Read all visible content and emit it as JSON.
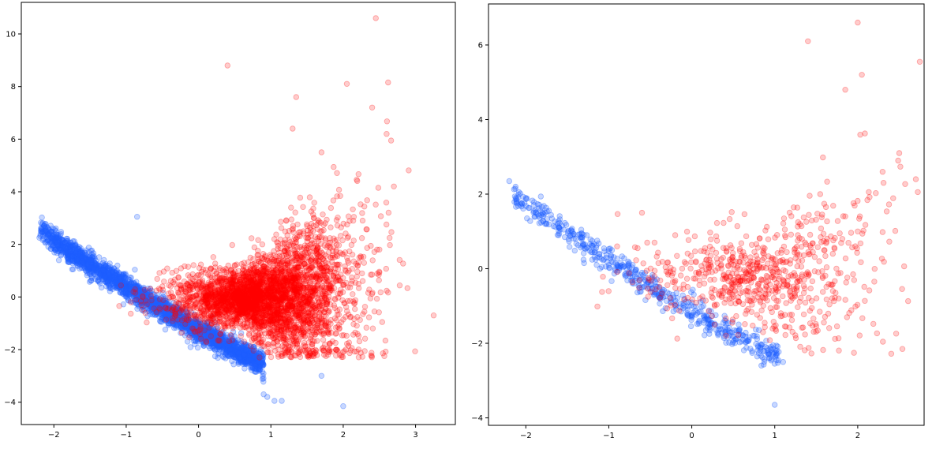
{
  "colors": {
    "background": "#ffffff",
    "axes": "#000000",
    "class_a": "#ff0000",
    "class_b": "#1f5fff"
  },
  "chart_data": [
    {
      "type": "scatter",
      "title": "",
      "xlabel": "",
      "ylabel": "",
      "xlim": [
        -2.45,
        3.55
      ],
      "ylim": [
        -4.85,
        11.2
      ],
      "xticks": [
        -2,
        -1,
        0,
        1,
        2,
        3
      ],
      "yticks": [
        -4,
        -2,
        0,
        2,
        4,
        6,
        8,
        10
      ],
      "xtick_labels": [
        "−2",
        "−1",
        "0",
        "1",
        "2",
        "3"
      ],
      "ytick_labels": [
        "−4",
        "−2",
        "0",
        "2",
        "4",
        "6",
        "8",
        "10"
      ],
      "grid": false,
      "legend": "none",
      "series": [
        {
          "color": "#1f5fff",
          "alpha": 0.25,
          "approx_points": 3200,
          "distribution": "narrow diagonal band along y ≈ -1.6·x - 1.4 for x in [-2.2, 0.9], plus sparse outliers",
          "x": [
            -2.2,
            -2.05,
            -1.9,
            -1.75,
            -1.6,
            -1.45,
            -1.3,
            -1.15,
            -1.0,
            -0.85,
            -0.7,
            -0.55,
            -0.4,
            -0.25,
            -0.1,
            0.05,
            0.2,
            0.35,
            0.5,
            0.65,
            0.8,
            -0.85,
            0.9,
            0.95,
            1.05,
            1.15,
            2.0,
            1.7
          ],
          "y": [
            2.25,
            2.05,
            1.8,
            1.55,
            1.3,
            1.05,
            0.8,
            0.55,
            0.3,
            0.05,
            -0.2,
            -0.45,
            -0.7,
            -0.95,
            -1.15,
            -1.35,
            -1.55,
            -1.7,
            -1.85,
            -2.0,
            -2.1,
            3.05,
            -3.7,
            -3.8,
            -3.95,
            -3.95,
            -4.15,
            -3.0
          ]
        },
        {
          "color": "#ff0000",
          "alpha": 0.2,
          "approx_points": 4500,
          "distribution": "dense cloud centered near (1.0, 0.0), spread x in [-1.0, 2.8], widening upward with x; sparse outliers",
          "x": [
            -0.9,
            -0.5,
            -0.2,
            0.1,
            0.4,
            0.7,
            1.0,
            1.3,
            1.6,
            1.9,
            2.2,
            2.5,
            0.4,
            2.45,
            2.05,
            2.4,
            1.35,
            1.3,
            1.7,
            2.6,
            3.25,
            2.7
          ],
          "y": [
            0.2,
            0.4,
            0.3,
            0.1,
            0.0,
            0.0,
            -0.1,
            0.0,
            0.3,
            0.6,
            1.2,
            1.8,
            8.8,
            10.6,
            8.1,
            7.2,
            7.6,
            6.4,
            5.5,
            6.2,
            -0.7,
            4.2
          ]
        }
      ]
    },
    {
      "type": "scatter",
      "title": "",
      "xlabel": "",
      "ylabel": "",
      "xlim": [
        -2.45,
        2.8
      ],
      "ylim": [
        -4.2,
        7.1
      ],
      "xticks": [
        -2,
        -1,
        0,
        1,
        2
      ],
      "yticks": [
        -4,
        -2,
        0,
        2,
        4,
        6
      ],
      "xtick_labels": [
        "−2",
        "−1",
        "0",
        "1",
        "2"
      ],
      "ytick_labels": [
        "−4",
        "−2",
        "0",
        "2",
        "4",
        "6"
      ],
      "grid": false,
      "legend": "none",
      "series": [
        {
          "color": "#1f5fff",
          "alpha": 0.25,
          "approx_points": 650,
          "distribution": "diagonal band from (-2.2, 2.3) down to (1.0, -2.2)",
          "x": [
            -2.2,
            -2.0,
            -1.8,
            -1.6,
            -1.4,
            -1.2,
            -1.0,
            -0.8,
            -0.6,
            -0.4,
            -0.2,
            0.0,
            0.2,
            0.4,
            0.6,
            0.8,
            1.0,
            1.1,
            1.0
          ],
          "y": [
            2.35,
            1.9,
            1.5,
            1.1,
            0.8,
            0.45,
            0.1,
            -0.2,
            -0.5,
            -0.75,
            -1.0,
            -1.3,
            -1.5,
            -1.7,
            -1.95,
            -2.1,
            -2.25,
            -2.5,
            -3.65
          ]
        },
        {
          "color": "#ff0000",
          "alpha": 0.2,
          "approx_points": 900,
          "distribution": "cloud centered near (0.9, -0.3), spread x in [-1.0, 2.7], y up to ~6.6",
          "x": [
            -0.9,
            -0.6,
            -0.2,
            0.2,
            0.5,
            0.8,
            1.1,
            1.4,
            1.7,
            2.0,
            2.3,
            2.0,
            1.4,
            2.05,
            1.85,
            2.5,
            2.7
          ],
          "y": [
            0.6,
            1.5,
            0.9,
            0.1,
            -0.3,
            -0.4,
            -0.3,
            -0.2,
            0.4,
            1.0,
            2.6,
            6.6,
            6.1,
            5.2,
            4.8,
            3.1,
            2.4
          ]
        }
      ]
    }
  ]
}
